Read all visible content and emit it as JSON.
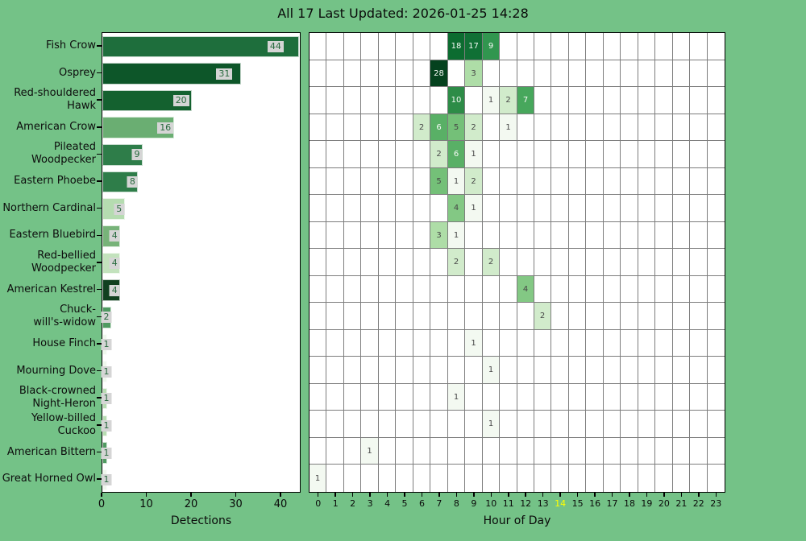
{
  "title": "All 17 Last Updated: 2026-01-25 14:28",
  "colors": {
    "background": "#74c287",
    "plot_background": "#ffffff",
    "axis_line": "#000000",
    "grid_line": "#7d7d7d",
    "value_label_bg": "#d5d5d5",
    "value_label_text": "#26693c",
    "tick_label": "#0a0a0a",
    "current_hour_highlight": "#ffff00",
    "cell_text_dark": "#474747",
    "cell_text_light": "#f5faf5"
  },
  "chart_data": [
    {
      "type": "bar",
      "orientation": "horizontal",
      "xlabel": "Detections",
      "xlim": [
        0,
        44.5
      ],
      "x_ticks": [
        0,
        10,
        20,
        30,
        40
      ],
      "categories": [
        "Fish Crow",
        "Osprey",
        "Red-shouldered Hawk",
        "American Crow",
        "Pileated Woodpecker",
        "Eastern Phoebe",
        "Northern Cardinal",
        "Eastern Bluebird",
        "Red-bellied Woodpecker",
        "American Kestrel",
        "Chuck-will's-widow",
        "House Finch",
        "Mourning Dove",
        "Black-crowned Night-Heron",
        "Yellow-billed Cuckoo",
        "American Bittern",
        "Great Horned Owl"
      ],
      "category_lines": [
        [
          "Fish Crow"
        ],
        [
          "Osprey"
        ],
        [
          "Red-shouldered",
          "Hawk"
        ],
        [
          "American Crow"
        ],
        [
          "Pileated",
          "Woodpecker"
        ],
        [
          "Eastern Phoebe"
        ],
        [
          "Northern Cardinal"
        ],
        [
          "Eastern Bluebird"
        ],
        [
          "Red-bellied",
          "Woodpecker"
        ],
        [
          "American Kestrel"
        ],
        [
          "Chuck-",
          "will's-widow"
        ],
        [
          "House Finch"
        ],
        [
          "Mourning Dove"
        ],
        [
          "Black-crowned",
          "Night-Heron"
        ],
        [
          "Yellow-billed",
          "Cuckoo"
        ],
        [
          "American Bittern"
        ],
        [
          "Great Horned Owl"
        ]
      ],
      "values": [
        44,
        31,
        20,
        16,
        9,
        8,
        5,
        4,
        4,
        4,
        2,
        1,
        1,
        1,
        1,
        1,
        1
      ],
      "bar_colors": [
        "#1e6e3c",
        "#0d5629",
        "#14612f",
        "#6aae72",
        "#2e7d49",
        "#2e7d49",
        "#b5dcb0",
        "#77b379",
        "#c3e2bd",
        "#11401f",
        "#4f9a61",
        "#eff7ed",
        "#eff7ed",
        "#b7dcb2",
        "#b7dcb2",
        "#4f9a61",
        "#eff7ed"
      ]
    },
    {
      "type": "heatmap",
      "xlabel": "Hour of Day",
      "x_ticks": [
        0,
        1,
        2,
        3,
        4,
        5,
        6,
        7,
        8,
        9,
        10,
        11,
        12,
        13,
        14,
        15,
        16,
        17,
        18,
        19,
        20,
        21,
        22,
        23
      ],
      "current_hour": 14,
      "rows": [
        {
          "species": "Fish Crow",
          "counts": {
            "8": 18,
            "9": 17,
            "10": 9
          }
        },
        {
          "species": "Osprey",
          "counts": {
            "7": 28,
            "9": 3
          }
        },
        {
          "species": "Red-shouldered Hawk",
          "counts": {
            "8": 10,
            "10": 1,
            "11": 2,
            "12": 7
          }
        },
        {
          "species": "American Crow",
          "counts": {
            "6": 2,
            "7": 6,
            "8": 5,
            "9": 2,
            "11": 1
          }
        },
        {
          "species": "Pileated Woodpecker",
          "counts": {
            "7": 2,
            "8": 6,
            "9": 1
          }
        },
        {
          "species": "Eastern Phoebe",
          "counts": {
            "7": 5,
            "8": 1,
            "9": 2
          }
        },
        {
          "species": "Northern Cardinal",
          "counts": {
            "8": 4,
            "9": 1
          }
        },
        {
          "species": "Eastern Bluebird",
          "counts": {
            "7": 3,
            "8": 1
          }
        },
        {
          "species": "Red-bellied Woodpecker",
          "counts": {
            "8": 2,
            "10": 2
          }
        },
        {
          "species": "American Kestrel",
          "counts": {
            "12": 4
          }
        },
        {
          "species": "Chuck-will's-widow",
          "counts": {
            "13": 2
          }
        },
        {
          "species": "House Finch",
          "counts": {
            "9": 1
          }
        },
        {
          "species": "Mourning Dove",
          "counts": {
            "10": 1
          }
        },
        {
          "species": "Black-crowned Night-Heron",
          "counts": {
            "8": 1
          }
        },
        {
          "species": "Yellow-billed Cuckoo",
          "counts": {
            "10": 1
          }
        },
        {
          "species": "American Bittern",
          "counts": {
            "3": 1
          }
        },
        {
          "species": "Great Horned Owl",
          "counts": {
            "0": 1
          }
        }
      ],
      "value_colors": {
        "1": "#f3f9f1",
        "2": "#d1ebcb",
        "3": "#aedda7",
        "4": "#83c884",
        "5": "#74c078",
        "6": "#59b066",
        "7": "#47a75c",
        "9": "#31964f",
        "10": "#2d8c47",
        "17": "#107035",
        "18": "#0c6c30",
        "28": "#05421e"
      },
      "dark_text_max_value": 5
    }
  ]
}
